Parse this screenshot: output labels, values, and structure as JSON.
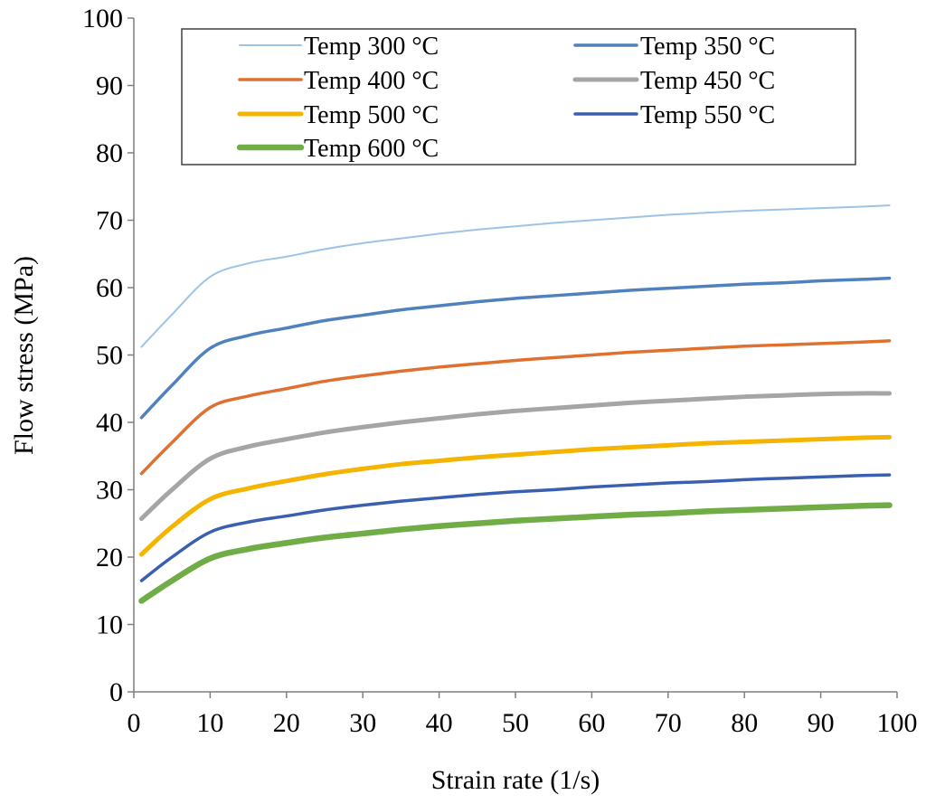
{
  "chart_data": {
    "type": "line",
    "title": "",
    "xlabel": "Strain rate (1/s)",
    "ylabel": "Flow stress (MPa)",
    "xlim": [
      0,
      100
    ],
    "ylim": [
      0,
      100
    ],
    "xticks": [
      0,
      10,
      20,
      30,
      40,
      50,
      60,
      70,
      80,
      90,
      100
    ],
    "yticks": [
      0,
      10,
      20,
      30,
      40,
      50,
      60,
      70,
      80,
      90,
      100
    ],
    "grid": false,
    "legend_position": "top",
    "x": [
      1,
      5,
      10,
      15,
      20,
      25,
      30,
      35,
      40,
      45,
      50,
      55,
      60,
      65,
      70,
      75,
      80,
      85,
      90,
      95,
      99
    ],
    "series": [
      {
        "name": "Temp 300 °C",
        "color": "#9dc3e6",
        "values": [
          51.2,
          56,
          61.6,
          63.6,
          64.6,
          65.7,
          66.6,
          67.3,
          68.0,
          68.6,
          69.1,
          69.6,
          70.0,
          70.4,
          70.8,
          71.1,
          71.4,
          71.6,
          71.8,
          72.0,
          72.2
        ]
      },
      {
        "name": "Temp 350 °C",
        "color": "#4f81bd",
        "values": [
          40.7,
          45.5,
          51.0,
          52.9,
          54.0,
          55.1,
          55.9,
          56.7,
          57.3,
          57.9,
          58.4,
          58.8,
          59.2,
          59.6,
          59.9,
          60.2,
          60.5,
          60.7,
          61.0,
          61.2,
          61.4
        ]
      },
      {
        "name": "Temp 400 °C",
        "color": "#e0702f",
        "values": [
          32.4,
          37.0,
          42.2,
          43.9,
          45.0,
          46.1,
          46.9,
          47.6,
          48.2,
          48.7,
          49.2,
          49.6,
          50.0,
          50.4,
          50.7,
          51.0,
          51.3,
          51.5,
          51.7,
          51.9,
          52.1
        ]
      },
      {
        "name": "Temp 450 °C",
        "color": "#a5a5a5",
        "values": [
          25.7,
          30.0,
          34.6,
          36.4,
          37.5,
          38.5,
          39.3,
          40.0,
          40.6,
          41.2,
          41.7,
          42.1,
          42.5,
          42.9,
          43.2,
          43.5,
          43.8,
          44.0,
          44.2,
          44.3,
          44.3
        ]
      },
      {
        "name": "Temp 500 °C",
        "color": "#f5b400",
        "values": [
          20.4,
          24.5,
          28.6,
          30.2,
          31.3,
          32.3,
          33.1,
          33.8,
          34.3,
          34.8,
          35.2,
          35.6,
          36.0,
          36.3,
          36.6,
          36.9,
          37.1,
          37.3,
          37.5,
          37.7,
          37.8
        ]
      },
      {
        "name": "Temp 550 °C",
        "color": "#3a5fb0",
        "values": [
          16.5,
          20.0,
          23.7,
          25.2,
          26.1,
          27.0,
          27.7,
          28.3,
          28.8,
          29.3,
          29.7,
          30.0,
          30.4,
          30.7,
          31.0,
          31.2,
          31.5,
          31.7,
          31.9,
          32.1,
          32.2
        ]
      },
      {
        "name": "Temp 600 °C",
        "color": "#70ad47",
        "values": [
          13.5,
          16.5,
          19.8,
          21.2,
          22.1,
          22.9,
          23.5,
          24.1,
          24.6,
          25.0,
          25.4,
          25.7,
          26.0,
          26.3,
          26.5,
          26.8,
          27.0,
          27.2,
          27.4,
          27.6,
          27.7
        ]
      }
    ]
  }
}
